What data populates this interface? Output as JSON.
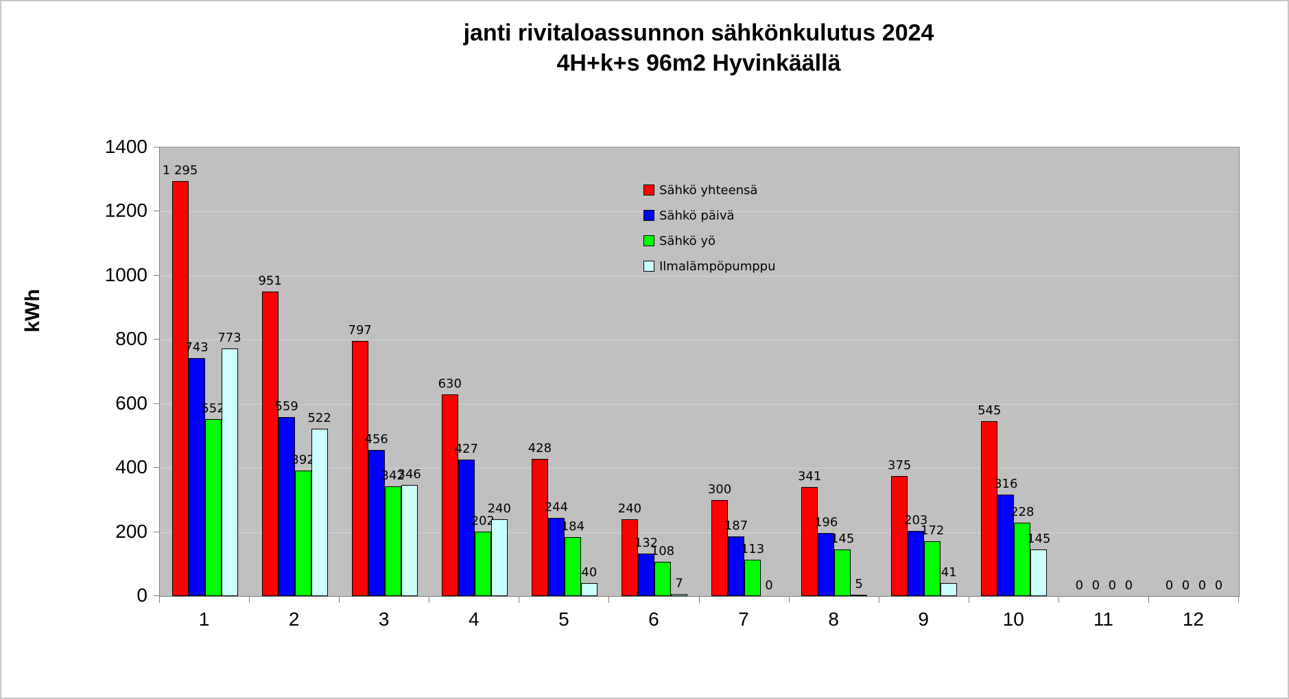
{
  "title": {
    "line1": "janti rivitaloassunnon sähkönkulutus 2024",
    "line2": "4H+k+s 96m2 Hyvinkäällä"
  },
  "y_axis": {
    "label": "kWh",
    "ticks": [
      "0",
      "200",
      "400",
      "600",
      "800",
      "1000",
      "1200",
      "1400"
    ],
    "min": 0,
    "max": 1400,
    "step": 200
  },
  "x_axis": {
    "categories": [
      "1",
      "2",
      "3",
      "4",
      "5",
      "6",
      "7",
      "8",
      "9",
      "10",
      "11",
      "12"
    ]
  },
  "legend": {
    "items": [
      "Sähkö yhteensä",
      "Sähkö päivä",
      "Sähkö yö",
      "Ilmalämpöpumppu"
    ]
  },
  "colors": {
    "plot_background": "#c0c0c0",
    "gridline": "#d3d3d3",
    "series": [
      "#ff0000",
      "#0000ff",
      "#00ff00",
      "#ccffff"
    ]
  },
  "chart_data": {
    "type": "bar",
    "title": "janti rivitaloassunnon sähkönkulutus 2024 4H+k+s 96m2 Hyvinkäällä",
    "xlabel": "",
    "ylabel": "kWh",
    "ylim": [
      0,
      1400
    ],
    "ytick_step": 200,
    "grid": true,
    "legend_position": "inside-top-center",
    "categories": [
      "1",
      "2",
      "3",
      "4",
      "5",
      "6",
      "7",
      "8",
      "9",
      "10",
      "11",
      "12"
    ],
    "series": [
      {
        "name": "Sähkö yhteensä",
        "color": "#ff0000",
        "values": [
          1295,
          951,
          797,
          630,
          428,
          240,
          300,
          341,
          375,
          545,
          0,
          0
        ],
        "labels": [
          "1 295",
          "951",
          "797",
          "630",
          "428",
          "240",
          "300",
          "341",
          "375",
          "545",
          "0",
          "0"
        ]
      },
      {
        "name": "Sähkö päivä",
        "color": "#0000ff",
        "values": [
          743,
          559,
          456,
          427,
          244,
          132,
          187,
          196,
          203,
          316,
          0,
          0
        ],
        "labels": [
          "743",
          "559",
          "456",
          "427",
          "244",
          "132",
          "187",
          "196",
          "203",
          "316",
          "0",
          "0"
        ]
      },
      {
        "name": "Sähkö yö",
        "color": "#00ff00",
        "values": [
          552,
          392,
          342,
          202,
          184,
          108,
          113,
          145,
          172,
          228,
          0,
          0
        ],
        "labels": [
          "552",
          "392",
          "342",
          "202",
          "184",
          "108",
          "113",
          "145",
          "172",
          "228",
          "0",
          "0"
        ]
      },
      {
        "name": "Ilmalämpöpumppu",
        "color": "#ccffff",
        "values": [
          773,
          522,
          346,
          240,
          40,
          7,
          0,
          5,
          41,
          145,
          0,
          0
        ],
        "labels": [
          "773",
          "522",
          "346",
          "240",
          "40",
          "7",
          "0",
          "5",
          "41",
          "145",
          "0",
          "0"
        ]
      }
    ]
  }
}
